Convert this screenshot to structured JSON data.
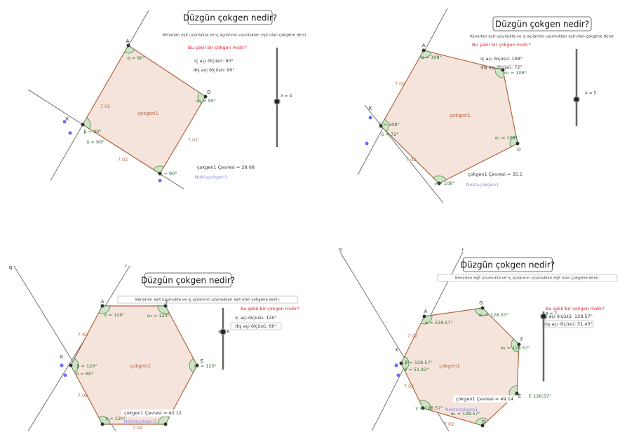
{
  "panels": [
    {
      "title": "Düzgün çokgen nedir?",
      "description": "Kenarları eşit uzunlukta ve iç açılarının uzunlukları eşit olan çokgene denir.",
      "question": "Bu şekil bir çokgen midir?",
      "interior_angle": "iç açı ölçüsü: 90°",
      "exterior_angle": "dış açı ölçüsü: 90°",
      "slider": "a = 4",
      "polygon_name": "çokgen1",
      "perimeter": "çokgen1 Çevresi = 28.08",
      "point_list": "Noktaçokgen1",
      "vertices": [
        "A",
        "D",
        "K"
      ],
      "sides": [
        "7.02",
        "7.02",
        "7.02"
      ],
      "angles": [
        "α = 90°",
        "α₁ = 90°",
        "β = 90°",
        "δ = 90°",
        "γ = 90°"
      ],
      "lines": []
    },
    {
      "title": "Düzgün çokgen nedir?",
      "description": "Kenarları eşit uzunlukta ve iç açılarının uzunlukları eşit olan çokgene denir.",
      "question": "Bu şekil bir çokgen midir?",
      "interior_angle": "iç açı ölçüsü: 108°",
      "exterior_angle": "dış açı ölçüsü: 72°",
      "slider": "a = 5",
      "polygon_name": "çokgen1",
      "perimeter": "çokgen1 Çevresi = 35.1",
      "point_list": "Noktaçokgen1",
      "vertices": [
        "A",
        "D",
        "K"
      ],
      "sides": [
        "7.02",
        "7.02"
      ],
      "angles": [
        "α = 108°",
        "α₂ = 108°",
        "α₁ = 108°",
        "β = 108°",
        "δ = 72°",
        "γ = 108°"
      ],
      "lines": []
    },
    {
      "title": "Düzgün çokgen nedir?",
      "description": "Kenarları eşit uzunlukta ve iç açılarının uzunlukları eşit olan çokgene denir.",
      "question": "Bu şekil bir çokgen midir?",
      "interior_angle": "iç açı ölçüsü: 120°",
      "exterior_angle": "dış açı ölçüsü: 60°",
      "slider": "a = 6",
      "polygon_name": "çokgen1",
      "perimeter": "çokgen1 Çevresi = 42.12",
      "point_list": "Noktaçokgen1",
      "vertices": [
        "A",
        "F",
        "E",
        "K"
      ],
      "sides": [
        "7.02",
        "7.02",
        "7.02"
      ],
      "angles": [
        "α = 120°",
        "α₃ = 120°",
        "α₁ = 120°",
        "β = 120°",
        "δ = 60°",
        "γ = 120°"
      ],
      "lines": [
        "q",
        "r"
      ]
    },
    {
      "title": "Düzgün çokgen nedir?",
      "description": "Kenarları eşit uzunlukta ve iç açılarının uzunlukları eşit olan çokgene denir.",
      "question": "Bu şekil bir çokgen midir?",
      "interior_angle": "iç açı ölçüsü: 128.57°",
      "exterior_angle": "dış açı ölçüsü: 51.43°",
      "slider": "a = 7",
      "polygon_name": "çokgen1",
      "perimeter": "çokgen1 Çevresi = 49.14",
      "point_list": "Noktaçokgen1",
      "vertices": [
        "A",
        "G",
        "F",
        "E",
        "D",
        "K"
      ],
      "sides": [
        "7.02",
        "7.02",
        "7.02"
      ],
      "angles": [
        "α = 128.57°",
        "α₄ = 128.57°",
        "α₃ = 128.57°",
        "β = 128.57°",
        "δ = 51.43°",
        "E 128.57°",
        "α₁ = 128.57°",
        "γ = 128.57°"
      ],
      "lines": [
        "q",
        "r"
      ]
    }
  ]
}
